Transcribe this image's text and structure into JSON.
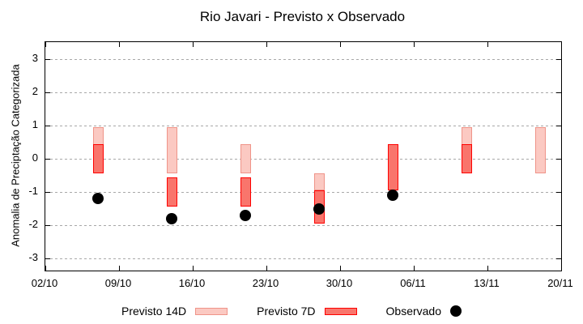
{
  "chart_data": {
    "type": "range-bar+scatter",
    "title": "Rio Javari - Previsto x Observado",
    "ylabel": "Anomalia de Preciptação Categorizada",
    "xlabel": "",
    "ylim": [
      -3.5,
      3.5
    ],
    "yticks": [
      3,
      2,
      1,
      0,
      -1,
      -2,
      -3
    ],
    "xticks": [
      "02/10",
      "09/10",
      "16/10",
      "23/10",
      "30/10",
      "06/11",
      "13/11",
      "20/11"
    ],
    "x_span_days": 49,
    "grid": "horizontal-dashed",
    "legend_position": "bottom-center",
    "bars": [
      {
        "date": "07/10",
        "day": 5,
        "previsto_14d": [
          -0.45,
          0.95
        ],
        "previsto_7d": [
          -0.45,
          0.45
        ],
        "observado": -1.2
      },
      {
        "date": "14/10",
        "day": 12,
        "previsto_14d": [
          -0.45,
          0.95
        ],
        "previsto_7d": [
          -1.45,
          -0.55
        ],
        "observado": -1.8
      },
      {
        "date": "21/10",
        "day": 19,
        "previsto_14d": [
          -0.45,
          0.45
        ],
        "previsto_7d": [
          -1.45,
          -0.55
        ],
        "observado": -1.7
      },
      {
        "date": "28/10",
        "day": 26,
        "previsto_14d": [
          -0.95,
          -0.45
        ],
        "previsto_7d": [
          -1.95,
          -0.95
        ],
        "observado": -1.5
      },
      {
        "date": "04/11",
        "day": 33,
        "previsto_14d": null,
        "previsto_7d": [
          -0.95,
          0.45
        ],
        "observado": -1.1
      },
      {
        "date": "11/11",
        "day": 40,
        "previsto_14d": [
          -0.45,
          0.95
        ],
        "previsto_7d": [
          -0.45,
          0.45
        ],
        "observado": null
      },
      {
        "date": "18/11",
        "day": 47,
        "previsto_14d": [
          -0.45,
          0.95
        ],
        "previsto_7d": null,
        "observado": null
      }
    ],
    "legend": [
      {
        "label": "Previsto 14D",
        "type": "box",
        "fill": "#fbc9c2",
        "border": "#ef9489"
      },
      {
        "label": "Previsto 7D",
        "type": "box",
        "fill": "#f9756c",
        "border": "#fe0000"
      },
      {
        "label": "Observado",
        "type": "dot",
        "color": "#000000"
      }
    ]
  },
  "colors": {
    "background": "#ffffff",
    "grid": "#a8a8a8",
    "axis": "#000000",
    "previsto_14d_fill": "#fbc9c2",
    "previsto_14d_border": "#ef9489",
    "previsto_7d_fill": "#f9756c",
    "previsto_7d_border": "#fe0000",
    "observado": "#000000"
  }
}
